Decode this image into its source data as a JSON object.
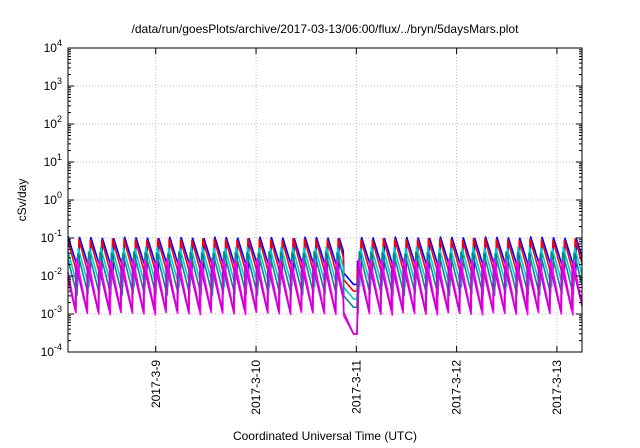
{
  "chart_data": {
    "type": "line",
    "title": "/data/run/goesPlots/archive/2017-03-13/06:00/flux/../bryn/5daysMars.plot",
    "xlabel": "Coordinated Universal Time (UTC)",
    "ylabel": "cSv/day",
    "yscale": "log",
    "ylim": [
      0.0001,
      10000
    ],
    "yticks": [
      {
        "value": 0.0001,
        "base": "10",
        "exp": "-4"
      },
      {
        "value": 0.001,
        "base": "10",
        "exp": "-3"
      },
      {
        "value": 0.01,
        "base": "10",
        "exp": "-2"
      },
      {
        "value": 0.1,
        "base": "10",
        "exp": "-1"
      },
      {
        "value": 1,
        "base": "10",
        "exp": "0"
      },
      {
        "value": 10,
        "base": "10",
        "exp": "1"
      },
      {
        "value": 100,
        "base": "10",
        "exp": "2"
      },
      {
        "value": 1000,
        "base": "10",
        "exp": "3"
      },
      {
        "value": 10000,
        "base": "10",
        "exp": "4"
      }
    ],
    "xlim": [
      "2017-03-08T03:00",
      "2017-03-13T06:00"
    ],
    "xticks": [
      {
        "value": "2017-03-09T00:00",
        "label": "2017-3-9"
      },
      {
        "value": "2017-03-10T00:00",
        "label": "2017-3-10"
      },
      {
        "value": "2017-03-11T00:00",
        "label": "2017-3-11"
      },
      {
        "value": "2017-03-12T00:00",
        "label": "2017-3-12"
      },
      {
        "value": "2017-03-13T00:00",
        "label": "2017-3-13"
      }
    ],
    "grid": true,
    "legend": "none",
    "pattern": {
      "description": "repeating sawtooth: sharp rise at each orbital pass then decay",
      "period_hours": 2.7,
      "gap": {
        "start": "2017-03-10T21:00",
        "end": "2017-03-11T00:15",
        "min_value": 0.0003
      }
    },
    "series": [
      {
        "color": "#0000ff",
        "peak": 0.11,
        "trough": 0.012
      },
      {
        "color": "#ff0000",
        "peak": 0.1,
        "trough": 0.008
      },
      {
        "color": "#00cccc",
        "peak": 0.06,
        "trough": 0.005
      },
      {
        "color": "#008b8b",
        "peak": 0.045,
        "trough": 0.003
      },
      {
        "color": "#ff00ff",
        "peak": 0.03,
        "trough": 0.0009
      },
      {
        "color": "#cc00cc",
        "peak": 0.02,
        "trough": 0.0011
      }
    ]
  }
}
